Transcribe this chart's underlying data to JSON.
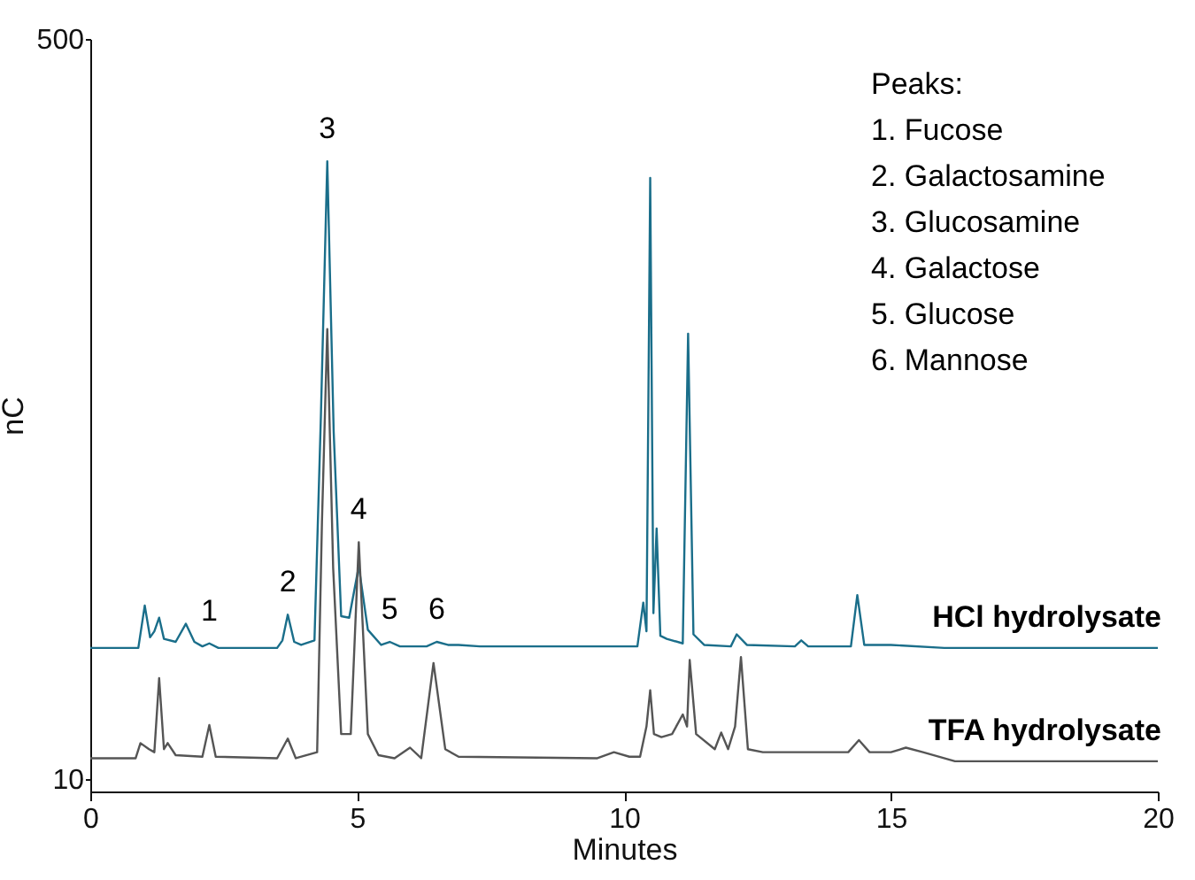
{
  "chart_data": {
    "type": "line",
    "xlabel": "Minutes",
    "ylabel": "nC",
    "xlim": [
      0,
      20
    ],
    "xticks": [
      0,
      5,
      10,
      15,
      20
    ],
    "ylim": [
      2,
      500
    ],
    "yticks": [
      10,
      500
    ],
    "grid": false,
    "legend": false,
    "annotations": [
      "Peaks:",
      "1. Fucose",
      "2. Galactosamine",
      "3. Glucosamine",
      "4. Galactose",
      "5. Glucose",
      "6. Mannose",
      {
        "text": "1",
        "x": 2.23,
        "y": 100
      },
      {
        "text": "2",
        "x": 3.7,
        "y": 119
      },
      {
        "text": "3",
        "x": 4.44,
        "y": 419
      },
      {
        "text": "4",
        "x": 5.03,
        "y": 167
      },
      {
        "text": "5",
        "x": 5.61,
        "y": 101
      },
      {
        "text": "6",
        "x": 6.49,
        "y": 101
      }
    ],
    "series": [
      {
        "name": "HCl hydrolysate",
        "color": "#1a6e8a",
        "x": [
          0,
          0.9,
          1.02,
          1.12,
          1.2,
          1.29,
          1.38,
          1.6,
          1.79,
          1.95,
          2.1,
          2.23,
          2.4,
          3.5,
          3.6,
          3.7,
          3.82,
          3.95,
          4.2,
          4.32,
          4.44,
          4.56,
          4.7,
          4.85,
          5.03,
          5.2,
          5.45,
          5.61,
          5.8,
          6.3,
          6.49,
          6.7,
          6.9,
          7.3,
          10.25,
          10.36,
          10.42,
          10.49,
          10.55,
          10.61,
          10.68,
          10.8,
          11.1,
          11.2,
          11.3,
          11.5,
          12.0,
          12.11,
          12.3,
          13.2,
          13.32,
          13.45,
          14.25,
          14.37,
          14.5,
          15.0,
          16,
          20
        ],
        "values": [
          97,
          97,
          125,
          104,
          108,
          117,
          103,
          101,
          113,
          101,
          98,
          100,
          97,
          97,
          102,
          119,
          101,
          99,
          102,
          250,
          419,
          240,
          118,
          117,
          151,
          109,
          99,
          101,
          98,
          98,
          101,
          99,
          99,
          98,
          98,
          127,
          108,
          408,
          120,
          176,
          105,
          103,
          100,
          305,
          106,
          99,
          98,
          106,
          99,
          98,
          102,
          98,
          98,
          132,
          99,
          99,
          97,
          97
        ]
      },
      {
        "name": "TFA hydrolysate",
        "color": "#555555",
        "x": [
          0,
          0.85,
          0.94,
          1.1,
          1.2,
          1.29,
          1.38,
          1.45,
          1.6,
          2.1,
          2.23,
          2.35,
          3.5,
          3.7,
          3.85,
          4.25,
          4.34,
          4.44,
          4.55,
          4.7,
          4.88,
          5.03,
          5.2,
          5.4,
          5.7,
          5.99,
          6.2,
          6.43,
          6.65,
          6.9,
          9.5,
          9.81,
          10.1,
          10.3,
          10.42,
          10.49,
          10.56,
          10.7,
          10.9,
          11.1,
          11.18,
          11.23,
          11.35,
          11.7,
          11.82,
          11.95,
          12.08,
          12.19,
          12.32,
          12.6,
          14.2,
          14.4,
          14.6,
          15.0,
          15.28,
          15.6,
          16.2,
          20
        ],
        "values": [
          24,
          24,
          34,
          30,
          28,
          77,
          30,
          34,
          26,
          25,
          46,
          25,
          24,
          37,
          24,
          28,
          180,
          308,
          150,
          40,
          40,
          167,
          40,
          26,
          24,
          31,
          24,
          87,
          30,
          25,
          24,
          28,
          25,
          25,
          45,
          69,
          40,
          38,
          40,
          53,
          45,
          89,
          40,
          30,
          41,
          30,
          45,
          91,
          30,
          28,
          28,
          36,
          28,
          28,
          31,
          28,
          22,
          22
        ]
      }
    ]
  }
}
